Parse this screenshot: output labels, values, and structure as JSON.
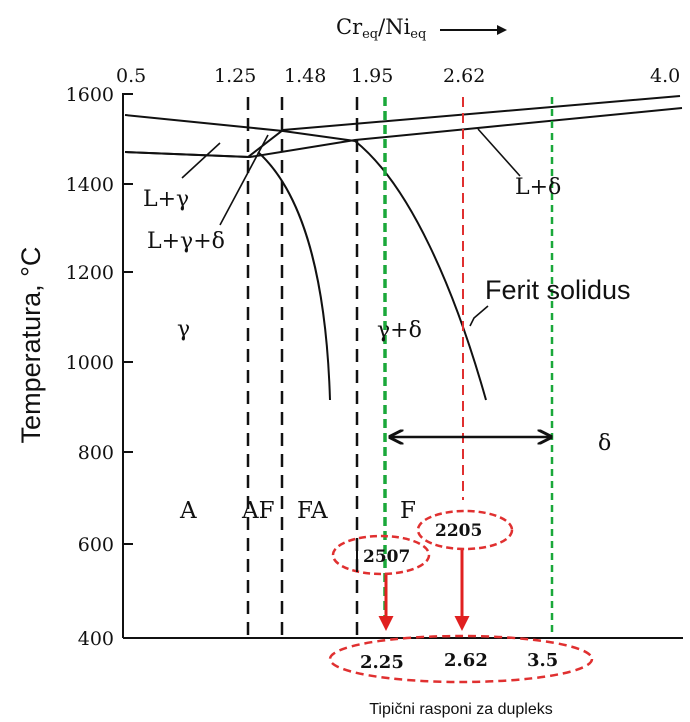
{
  "top_axis": {
    "label_main": "Cr",
    "label_sub1": "eq",
    "label_sep": "/Ni",
    "label_sub2": "eq",
    "ticks": [
      "0.5",
      "1.25",
      "1.48",
      "1.95",
      "2.62",
      "4.0"
    ]
  },
  "y_axis": {
    "label": "Temperatura, °C",
    "ticks": [
      "1600",
      "1400",
      "1200",
      "1000",
      "800",
      "600",
      "400"
    ]
  },
  "phase_labels": {
    "l_gamma": "L+γ",
    "l_gamma_delta": "L+γ+δ",
    "l_delta": "L+δ",
    "gamma": "γ",
    "gamma_delta": "γ+δ",
    "delta": "δ",
    "ferit_solidus": "Ferit solidus"
  },
  "modes": {
    "a": "A",
    "af": "AF",
    "fa": "FA",
    "f": "F"
  },
  "alloys": {
    "a2507": "2507",
    "a2205": "2205"
  },
  "bottom_values": {
    "v1": "2.25",
    "v2": "2.62",
    "v3": "3.5"
  },
  "caption": "Tipični rasponi za dupleks",
  "colors": {
    "green_line": "#1aa83a",
    "red_line": "#e03030",
    "red_arrow": "#e02020",
    "axis": "#111111"
  }
}
